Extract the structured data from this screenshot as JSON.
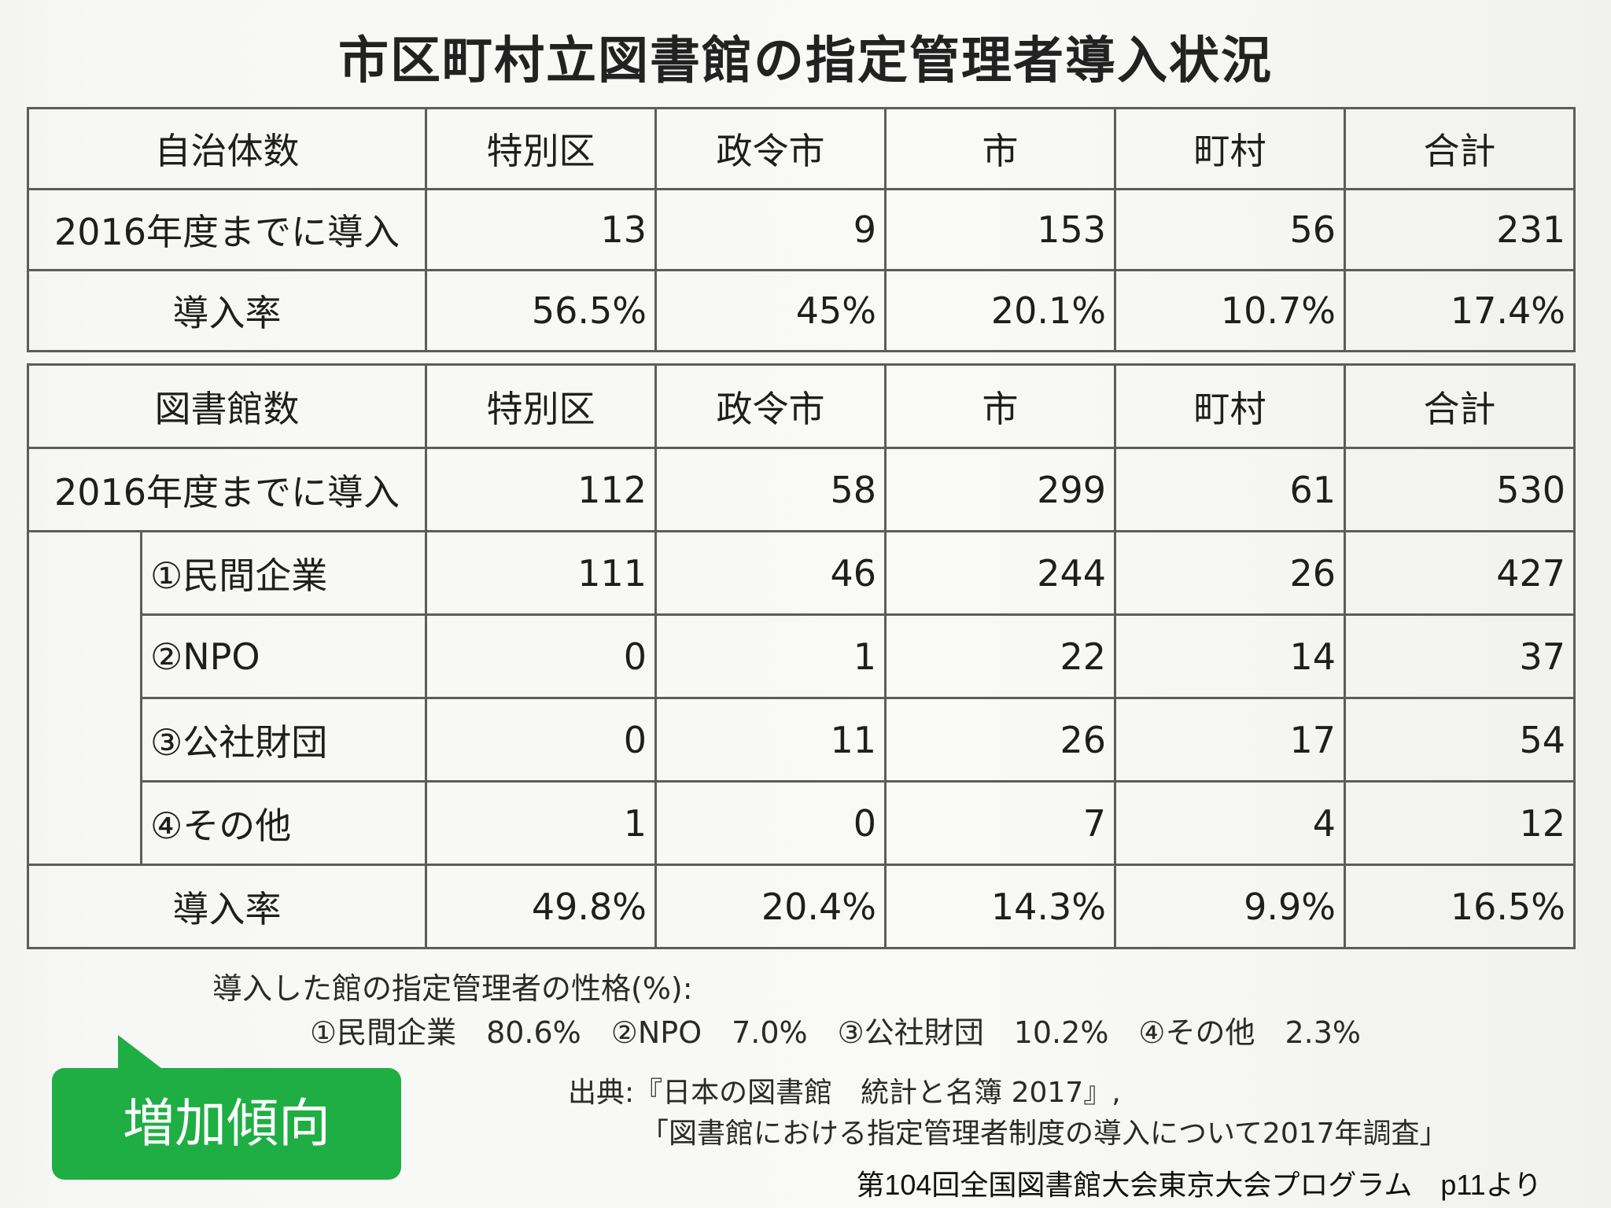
{
  "title": "市区町村立図書館の指定管理者導入状況",
  "table1": {
    "header": [
      "自治体数",
      "特別区",
      "政令市",
      "市",
      "町村",
      "合計"
    ],
    "rows": [
      [
        "2016年度までに導入",
        "13",
        "9",
        "153",
        "56",
        "231"
      ],
      [
        "導入率",
        "56.5%",
        "45%",
        "20.1%",
        "10.7%",
        "17.4%"
      ]
    ]
  },
  "table2": {
    "header": [
      "図書館数",
      "特別区",
      "政令市",
      "市",
      "町村",
      "合計"
    ],
    "total_row": [
      "2016年度までに導入",
      "112",
      "58",
      "299",
      "61",
      "530"
    ],
    "sub_rows": [
      [
        "①民間企業",
        "111",
        "46",
        "244",
        "26",
        "427"
      ],
      [
        "②NPO",
        "0",
        "1",
        "22",
        "14",
        "37"
      ],
      [
        "③公社財団",
        "0",
        "11",
        "26",
        "17",
        "54"
      ],
      [
        "④その他",
        "1",
        "0",
        "7",
        "4",
        "12"
      ]
    ],
    "rate_row": [
      "導入率",
      "49.8%",
      "20.4%",
      "14.3%",
      "9.9%",
      "16.5%"
    ]
  },
  "nature": {
    "heading": "導入した館の指定管理者の性格(%):",
    "items": "①民間企業　80.6%　②NPO　7.0%　③公社財団　10.2%　④その他　2.3%"
  },
  "source": {
    "line1": "出典:『日本の図書館　統計と名簿 2017』,",
    "line2": "「図書館における指定管理者制度の導入について2017年調査」"
  },
  "badge": "増加傾向",
  "footer": "第104回全国図書館大会東京大会プログラム　p11より",
  "colors": {
    "badge": "#1fae43",
    "grid": "#5c5c5c"
  }
}
